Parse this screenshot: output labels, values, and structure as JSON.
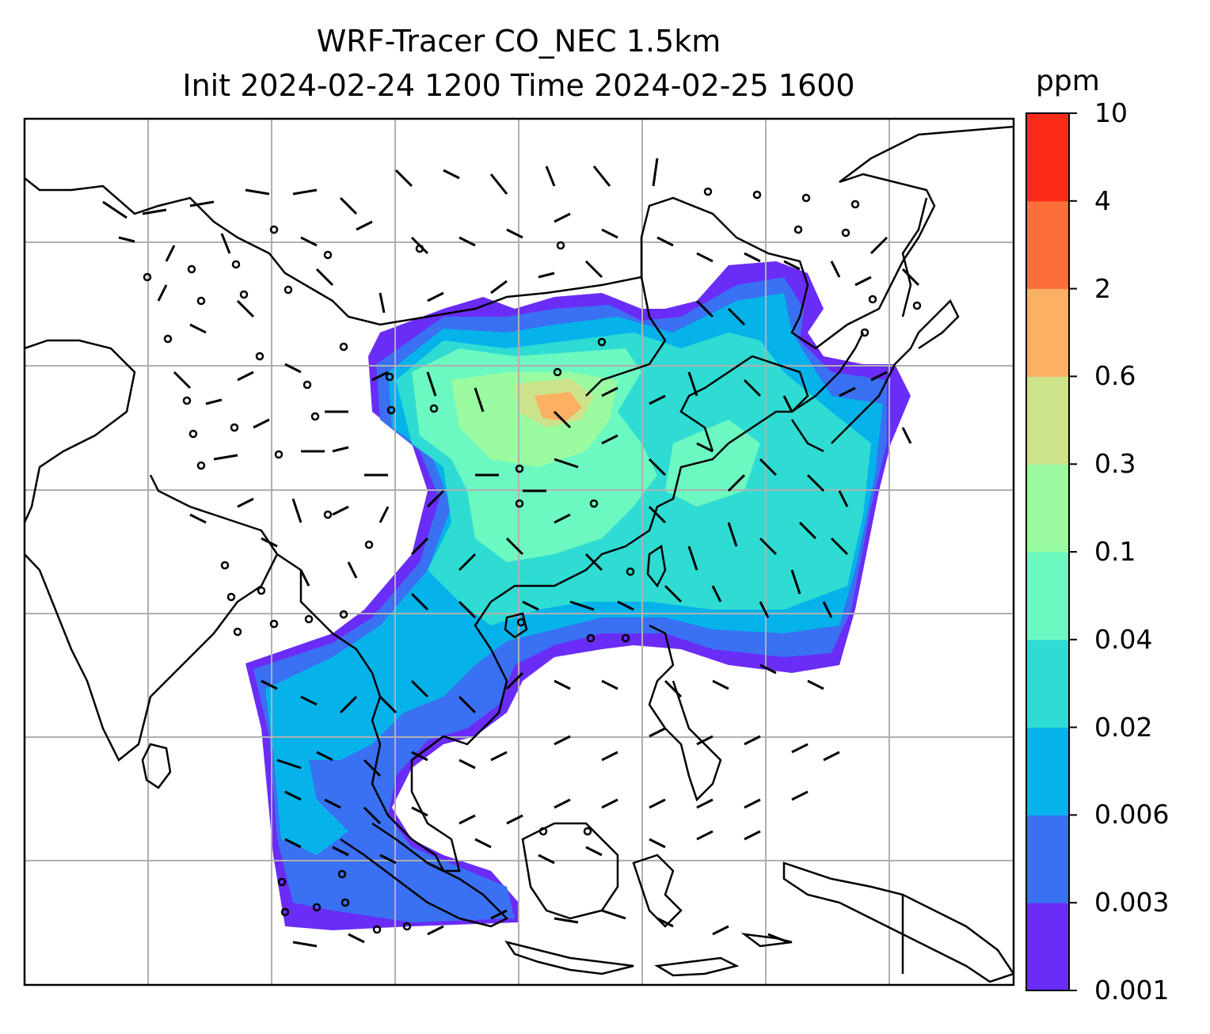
{
  "title": {
    "line1": "WRF-Tracer CO_NEC 1.5km",
    "line2": "Init 2024-02-24 1200 Time 2024-02-25 1600"
  },
  "colorbar": {
    "unit": "ppm",
    "tick_labels": [
      "0.001",
      "0.003",
      "0.006",
      "0.02",
      "0.04",
      "0.1",
      "0.3",
      "0.6",
      "2",
      "4",
      "10"
    ],
    "colors": [
      "#6a2cf7",
      "#3a70f2",
      "#06b2ea",
      "#2edcd3",
      "#6cf8c1",
      "#9afba0",
      "#cce38b",
      "#fcb063",
      "#fd6f3a",
      "#fc2a19"
    ]
  },
  "map": {
    "grid": true,
    "coastline_color": "#000000",
    "grid_color": "#b0b0b0",
    "wind_barbs_color": "#000000"
  }
}
